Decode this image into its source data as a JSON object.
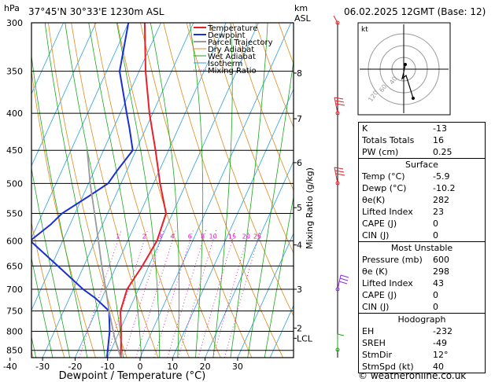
{
  "header": {
    "location": "37°45'N  30°33'E  1230m  ASL",
    "datetime": "06.02.2025  12GMT  (Base: 12)",
    "hpa_label": "hPa",
    "km_label": "km",
    "asl_label": "ASL"
  },
  "footer": {
    "credit": "© weatheronline.co.uk"
  },
  "legend": [
    {
      "label": "Temperature",
      "color": "#e8202a"
    },
    {
      "label": "Dewpoint",
      "color": "#1a2fd0"
    },
    {
      "label": "Parcel Trajectory",
      "color": "#9a9a9a"
    },
    {
      "label": "Dry Adiabat",
      "color": "#e08a1a"
    },
    {
      "label": "Wet Adiabat",
      "color": "#1aa81a"
    },
    {
      "label": "Isotherm",
      "color": "#2aa0e0"
    },
    {
      "label": "Mixing Ratio",
      "color": "#d01ac0"
    }
  ],
  "chart_data": {
    "type": "line",
    "title": "",
    "xlabel": "Dewpoint / Temperature (°C)",
    "ylabel": "hPa",
    "y2label": "Mixing Ratio (g/kg)",
    "xlim": [
      -45,
      37
    ],
    "ylim": [
      870,
      300
    ],
    "x_ticks": [
      -40,
      -30,
      -20,
      -10,
      0,
      10,
      20,
      30
    ],
    "x_tick_labels": [
      "-40",
      "-30",
      "-20",
      "-10",
      "0",
      "10",
      "20",
      "30"
    ],
    "pressure_levels": [
      300,
      350,
      400,
      450,
      500,
      550,
      600,
      650,
      700,
      750,
      800,
      850
    ],
    "pressure_labels": [
      "300",
      "350",
      "400",
      "450",
      "500",
      "550",
      "600",
      "650",
      "700",
      "750",
      "800",
      "850"
    ],
    "km_ticks": [
      {
        "label": "8",
        "p": 352
      },
      {
        "label": "7",
        "p": 407
      },
      {
        "label": "6",
        "p": 468
      },
      {
        "label": "5",
        "p": 540
      },
      {
        "label": "4",
        "p": 608
      },
      {
        "label": "3",
        "p": 700
      },
      {
        "label": "2",
        "p": 792
      },
      {
        "label": "LCL",
        "p": 818
      }
    ],
    "mixing_ratio_labels": [
      "1",
      "2",
      "3",
      "4",
      "6",
      "8",
      "10",
      "15",
      "20",
      "25"
    ],
    "mixing_ratio_values": [
      1,
      2,
      3,
      4,
      6,
      8,
      10,
      15,
      20,
      25
    ],
    "series": [
      {
        "name": "Temperature",
        "color": "#e8202a",
        "points": [
          [
            870,
            -5.9
          ],
          [
            800,
            -9.5
          ],
          [
            750,
            -12.5
          ],
          [
            700,
            -13.5
          ],
          [
            650,
            -12
          ],
          [
            600,
            -11
          ],
          [
            550,
            -12
          ],
          [
            500,
            -18
          ],
          [
            450,
            -24
          ],
          [
            400,
            -31
          ],
          [
            350,
            -38
          ],
          [
            300,
            -45
          ]
        ]
      },
      {
        "name": "Dewpoint",
        "color": "#1a2fd0",
        "points": [
          [
            870,
            -10.2
          ],
          [
            800,
            -13
          ],
          [
            750,
            -16
          ],
          [
            720,
            -22
          ],
          [
            700,
            -27
          ],
          [
            650,
            -38
          ],
          [
            600,
            -50
          ],
          [
            570,
            -46
          ],
          [
            550,
            -44
          ],
          [
            520,
            -38
          ],
          [
            500,
            -34
          ],
          [
            480,
            -33
          ],
          [
            450,
            -31
          ],
          [
            420,
            -35
          ],
          [
            400,
            -38
          ],
          [
            350,
            -46
          ],
          [
            300,
            -50
          ]
        ]
      },
      {
        "name": "Parcel Trajectory",
        "color": "#9a9a9a",
        "points": [
          [
            870,
            -5.9
          ],
          [
            818,
            -10.5
          ],
          [
            750,
            -16
          ],
          [
            700,
            -20
          ],
          [
            650,
            -24.5
          ],
          [
            600,
            -29
          ],
          [
            550,
            -34
          ],
          [
            500,
            -39.5
          ],
          [
            450,
            -45
          ]
        ]
      }
    ]
  },
  "hodograph": {
    "label": "kt",
    "ring_labels": [
      "40",
      "60",
      "120"
    ]
  },
  "indices": {
    "rows": [
      {
        "label": "K",
        "value": "-13"
      },
      {
        "label": "Totals Totals",
        "value": "16"
      },
      {
        "label": "PW (cm)",
        "value": "0.25"
      }
    ]
  },
  "surface": {
    "title": "Surface",
    "rows": [
      {
        "label": "Temp (°C)",
        "value": "-5.9"
      },
      {
        "label": "Dewp (°C)",
        "value": "-10.2"
      },
      {
        "label": "θe(K)",
        "value": "282"
      },
      {
        "label": "Lifted Index",
        "value": "23"
      },
      {
        "label": "CAPE (J)",
        "value": "0"
      },
      {
        "label": "CIN (J)",
        "value": "0"
      }
    ]
  },
  "most_unstable": {
    "title": "Most Unstable",
    "rows": [
      {
        "label": "Pressure (mb)",
        "value": "600"
      },
      {
        "label": "θe (K)",
        "value": "298"
      },
      {
        "label": "Lifted Index",
        "value": "43"
      },
      {
        "label": "CAPE (J)",
        "value": "0"
      },
      {
        "label": "CIN (J)",
        "value": "0"
      }
    ]
  },
  "hodograph_table": {
    "title": "Hodograph",
    "rows": [
      {
        "label": "EH",
        "value": "-232"
      },
      {
        "label": "SREH",
        "value": "-49"
      },
      {
        "label": "StmDir",
        "value": "12°"
      },
      {
        "label": "StmSpd (kt)",
        "value": "40"
      }
    ]
  }
}
